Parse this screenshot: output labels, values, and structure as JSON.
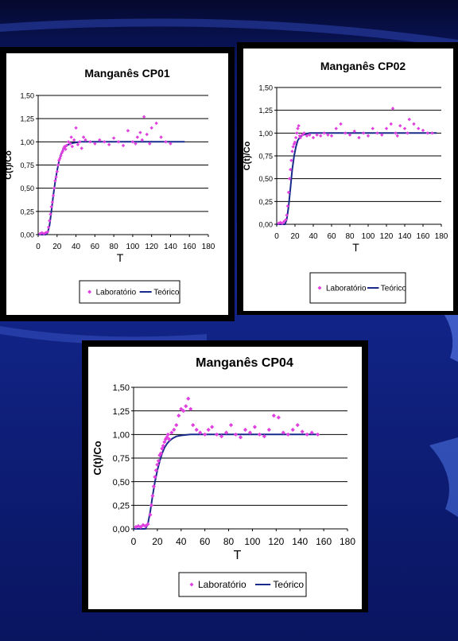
{
  "colors": {
    "background": "#12258a",
    "laboratorio": "#e040e0",
    "teorico": "#1a2a8a",
    "grid": "#000000"
  },
  "chart_data": [
    {
      "id": "cp01",
      "type": "scatter",
      "title": "Manganês CP01",
      "xlabel": "T",
      "ylabel": "C(t)/Co",
      "xlim": [
        0,
        180
      ],
      "ylim": [
        0,
        1.5
      ],
      "xticks": [
        "0",
        "20",
        "40",
        "60",
        "80",
        "100",
        "120",
        "140",
        "160",
        "180"
      ],
      "yticks": [
        "0,00",
        "0,25",
        "0,50",
        "0,75",
        "1,00",
        "1,25",
        "1,50"
      ],
      "grid": "horizontal",
      "legend": "bottom",
      "series": [
        {
          "name": "Laboratório",
          "kind": "points",
          "x": [
            2,
            4,
            6,
            8,
            10,
            11,
            12,
            13,
            14,
            15,
            16,
            17,
            18,
            19,
            20,
            21,
            22,
            23,
            24,
            25,
            26,
            27,
            28,
            29,
            30,
            32,
            34,
            35,
            36,
            38,
            40,
            42,
            44,
            46,
            48,
            50,
            55,
            60,
            65,
            70,
            75,
            80,
            85,
            90,
            95,
            100,
            103,
            105,
            108,
            110,
            112,
            115,
            118,
            120,
            125,
            130,
            135,
            140
          ],
          "y": [
            0.01,
            0.02,
            0.01,
            0.02,
            0.03,
            0.08,
            0.15,
            0.22,
            0.3,
            0.35,
            0.42,
            0.5,
            0.58,
            0.62,
            0.68,
            0.75,
            0.8,
            0.82,
            0.85,
            0.88,
            0.9,
            0.93,
            0.95,
            0.92,
            0.96,
            1.0,
            0.98,
            1.05,
            0.95,
            1.02,
            1.15,
            0.97,
            1.0,
            0.93,
            1.05,
            1.02,
            1.0,
            0.98,
            1.02,
            1.0,
            0.97,
            1.04,
            1.0,
            0.96,
            1.12,
            1.0,
            0.98,
            1.05,
            1.1,
            1.02,
            1.27,
            1.08,
            0.98,
            1.15,
            1.2,
            1.05,
            1.0,
            0.98
          ]
        },
        {
          "name": "Teórico",
          "kind": "line",
          "x": [
            0,
            8,
            10,
            12,
            14,
            16,
            18,
            20,
            22,
            24,
            26,
            28,
            30,
            34,
            38,
            45,
            55,
            80,
            120,
            155
          ],
          "y": [
            0.0,
            0.0,
            0.02,
            0.1,
            0.25,
            0.42,
            0.57,
            0.69,
            0.79,
            0.86,
            0.91,
            0.94,
            0.96,
            0.98,
            0.99,
            1.0,
            1.0,
            1.0,
            1.0,
            1.0
          ]
        }
      ]
    },
    {
      "id": "cp02",
      "type": "scatter",
      "title": "Manganês CP02",
      "xlabel": "T",
      "ylabel": "C(t)/Co",
      "xlim": [
        0,
        180
      ],
      "ylim": [
        0,
        1.5
      ],
      "xticks": [
        "0",
        "20",
        "40",
        "60",
        "80",
        "100",
        "120",
        "140",
        "160",
        "180"
      ],
      "yticks": [
        "0,00",
        "0,25",
        "0,50",
        "0,75",
        "1,00",
        "1,25",
        "1,50"
      ],
      "grid": "horizontal",
      "legend": "bottom",
      "series": [
        {
          "name": "Laboratório",
          "kind": "points",
          "x": [
            2,
            4,
            6,
            8,
            10,
            11,
            12,
            13,
            14,
            15,
            16,
            17,
            18,
            19,
            20,
            21,
            22,
            23,
            24,
            25,
            26,
            28,
            30,
            33,
            36,
            40,
            44,
            48,
            52,
            56,
            60,
            65,
            70,
            75,
            80,
            85,
            90,
            95,
            100,
            105,
            110,
            115,
            120,
            125,
            127,
            130,
            132,
            135,
            140,
            143,
            145,
            150,
            155,
            160,
            165,
            170
          ],
          "y": [
            0.01,
            0.02,
            0.01,
            0.03,
            0.05,
            0.1,
            0.2,
            0.35,
            0.5,
            0.6,
            0.7,
            0.8,
            0.85,
            0.88,
            0.9,
            0.95,
            1.0,
            1.05,
            1.08,
            0.97,
            0.95,
            0.98,
            1.0,
            0.97,
            0.98,
            0.95,
            0.98,
            0.97,
            1.0,
            0.98,
            0.97,
            1.05,
            1.1,
            1.0,
            0.98,
            1.02,
            0.95,
            1.0,
            0.97,
            1.05,
            1.0,
            0.98,
            1.05,
            1.1,
            1.27,
            1.0,
            0.97,
            1.08,
            1.05,
            1.0,
            1.15,
            1.1,
            1.05,
            1.03,
            1.0,
            1.0
          ]
        },
        {
          "name": "Teórico",
          "kind": "line",
          "x": [
            0,
            9,
            11,
            13,
            15,
            17,
            19,
            21,
            23,
            25,
            27,
            29,
            32,
            36,
            42,
            55,
            80,
            120,
            175
          ],
          "y": [
            0.0,
            0.0,
            0.05,
            0.2,
            0.4,
            0.6,
            0.75,
            0.85,
            0.92,
            0.95,
            0.97,
            0.98,
            0.99,
            1.0,
            1.0,
            1.0,
            1.0,
            1.0,
            1.0
          ]
        }
      ]
    },
    {
      "id": "cp04",
      "type": "scatter",
      "title": "Manganês CP04",
      "xlabel": "T",
      "ylabel": "C(t)/Co",
      "xlim": [
        0,
        180
      ],
      "ylim": [
        0,
        1.5
      ],
      "xticks": [
        "0",
        "20",
        "40",
        "60",
        "80",
        "100",
        "120",
        "140",
        "160",
        "180"
      ],
      "yticks": [
        "0,00",
        "0,25",
        "0,50",
        "0,75",
        "1,00",
        "1,25",
        "1,50"
      ],
      "grid": "horizontal",
      "legend": "bottom",
      "series": [
        {
          "name": "Laboratório",
          "kind": "points",
          "x": [
            2,
            4,
            6,
            8,
            10,
            12,
            14,
            15,
            16,
            17,
            18,
            19,
            20,
            21,
            22,
            23,
            24,
            25,
            26,
            27,
            28,
            29,
            30,
            32,
            34,
            36,
            38,
            40,
            42,
            44,
            46,
            48,
            50,
            53,
            56,
            60,
            63,
            66,
            70,
            74,
            78,
            82,
            86,
            90,
            94,
            98,
            102,
            106,
            110,
            114,
            118,
            122,
            126,
            130,
            134,
            138,
            142,
            146,
            150,
            155
          ],
          "y": [
            0.02,
            0.03,
            0.02,
            0.04,
            0.03,
            0.05,
            0.15,
            0.25,
            0.35,
            0.45,
            0.55,
            0.62,
            0.68,
            0.72,
            0.78,
            0.8,
            0.85,
            0.88,
            0.92,
            0.95,
            0.97,
            1.0,
            0.95,
            1.02,
            1.05,
            1.1,
            1.2,
            1.27,
            1.25,
            1.3,
            1.38,
            1.27,
            1.1,
            1.05,
            1.02,
            1.0,
            1.05,
            1.08,
            1.0,
            0.98,
            1.02,
            1.1,
            1.0,
            0.97,
            1.05,
            1.02,
            1.08,
            1.0,
            0.98,
            1.05,
            1.2,
            1.18,
            1.02,
            1.0,
            1.05,
            1.1,
            1.03,
            1.0,
            1.02,
            1.0
          ]
        },
        {
          "name": "Teórico",
          "kind": "line",
          "x": [
            0,
            10,
            12,
            14,
            16,
            18,
            20,
            22,
            24,
            26,
            28,
            30,
            33,
            36,
            40,
            48,
            60,
            90,
            120,
            155
          ],
          "y": [
            0.0,
            0.0,
            0.05,
            0.18,
            0.35,
            0.5,
            0.62,
            0.72,
            0.8,
            0.86,
            0.9,
            0.93,
            0.96,
            0.98,
            0.99,
            1.0,
            1.0,
            1.0,
            1.0,
            1.0
          ]
        }
      ]
    }
  ]
}
